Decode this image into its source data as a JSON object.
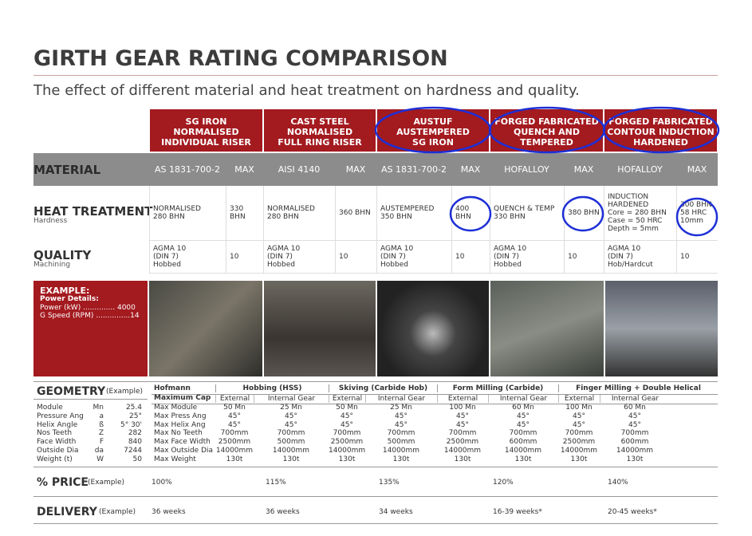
{
  "header": {
    "title": "GIRTH GEAR RATING COMPARISON",
    "subtitle": "The effect of different material and heat treatment on hardness and quality."
  },
  "table": {
    "columns": [
      "SG IRON\nNORMALISED\nINDIVIDUAL RISER",
      "CAST STEEL\nNORMALISED\nFULL RING RISER",
      "AUSTUF\nAUSTEMPERED\nSG IRON",
      "FORGED FABRICATED\nQUENCH AND\nTEMPERED",
      "FORGED FABRICATED\nCONTOUR INDUCTION\nHARDENED"
    ],
    "material": {
      "label": "MATERIAL",
      "cells": [
        "AS 1831-700-2",
        "MAX",
        "AISI 4140",
        "MAX",
        "AS 1831-700-2",
        "MAX",
        "HOFALLOY",
        "MAX",
        "HOFALLOY",
        "MAX"
      ]
    },
    "heat_treatment": {
      "label": "HEAT TREATMENT",
      "sublabel": "Hardness",
      "cells": [
        "NORMALISED\n280 BHN",
        "330 BHN",
        "NORMALISED\n280 BHN",
        "360 BHN",
        "AUSTEMPERED\n350 BHN",
        "400 BHN",
        "QUENCH & TEMP\n330 BHN",
        "380 BHN",
        "INDUCTION\nHARDENED\nCore = 280 BHN\nCase = 50 HRC\nDepth = 5mm",
        "300 BHN\n58 HRC\n10mm"
      ]
    },
    "quality": {
      "label": "QUALITY",
      "sublabel": "Machining",
      "cells": [
        "AGMA 10\n(DIN 7)\nHobbed",
        "10",
        "AGMA 10\n(DIN 7)\nHobbed",
        "10",
        "AGMA 10\n(DIN 7)\nHobbed",
        "10",
        "AGMA 10\n(DIN 7)\nHobbed",
        "10",
        "AGMA 10\n(DIN 7)\nHob/Hardcut",
        "10"
      ]
    }
  },
  "example": {
    "title": "EXAMPLE:",
    "subtitle": "Power Details:",
    "lines": [
      "Power (kW) .............. 4000",
      "G Speed (RPM) ...............14"
    ]
  },
  "geometry": {
    "title": "GEOMETRY",
    "note": "(Example)",
    "params": [
      [
        "Module",
        "Mn",
        "25.4"
      ],
      [
        "Pressure Ang",
        "a",
        "25°"
      ],
      [
        "Helix Angle",
        "ß",
        "5° 30'"
      ],
      [
        "Nos Teeth",
        "Z",
        "282"
      ],
      [
        "Face Width",
        "F",
        "840"
      ],
      [
        "Outside Dia",
        "da",
        "7244"
      ],
      [
        "Weight (t)",
        "W",
        "50"
      ]
    ],
    "hofmann": [
      "Hofmann",
      "Maximum Cap"
    ],
    "caps": [
      "Max Module",
      "Max Press Ang",
      "Max Helix Ang",
      "Max No Teeth",
      "Max Face Width",
      "Max Outside Dia",
      "Max Weight"
    ],
    "methods": [
      "Hobbing (HSS)",
      "Skiving (Carbide Hob)",
      "Form Milling (Carbide)",
      "Finger Milling + Double Helical"
    ],
    "subheaders": [
      "External",
      "Internal Gear",
      "External",
      "Internal Gear",
      "External",
      "Internal Gear",
      "External",
      "Internal Gear"
    ],
    "values": [
      [
        "50 Mn",
        "45°",
        "45°",
        "700mm",
        "2500mm",
        "14000mm",
        "130t"
      ],
      [
        "25 Mn",
        "45°",
        "45°",
        "700mm",
        "500mm",
        "14000mm",
        "130t"
      ],
      [
        "50 Mn",
        "45°",
        "45°",
        "700mm",
        "2500mm",
        "14000mm",
        "130t"
      ],
      [
        "25 Mn",
        "45°",
        "45°",
        "700mm",
        "500mm",
        "14000mm",
        "130t"
      ],
      [
        "100 Mn",
        "45°",
        "45°",
        "700mm",
        "2500mm",
        "14000mm",
        "130t"
      ],
      [
        "60 Mn",
        "45°",
        "45°",
        "700mm",
        "600mm",
        "14000mm",
        "130t"
      ],
      [
        "100 Mn",
        "45°",
        "45°",
        "700mm",
        "2500mm",
        "14000mm",
        "130t"
      ],
      [
        "60 Mn",
        "45°",
        "45°",
        "700mm",
        "600mm",
        "14000mm",
        "130t"
      ]
    ]
  },
  "price": {
    "label": "% PRICE",
    "note": "(Example)",
    "values": [
      "100%",
      "115%",
      "135%",
      "120%",
      "140%"
    ]
  },
  "delivery": {
    "label": "DELIVERY",
    "note": "(Example)",
    "values": [
      "36 weeks",
      "36 weeks",
      "34 weeks",
      "16-39 weeks*",
      "20-45 weeks*"
    ]
  }
}
